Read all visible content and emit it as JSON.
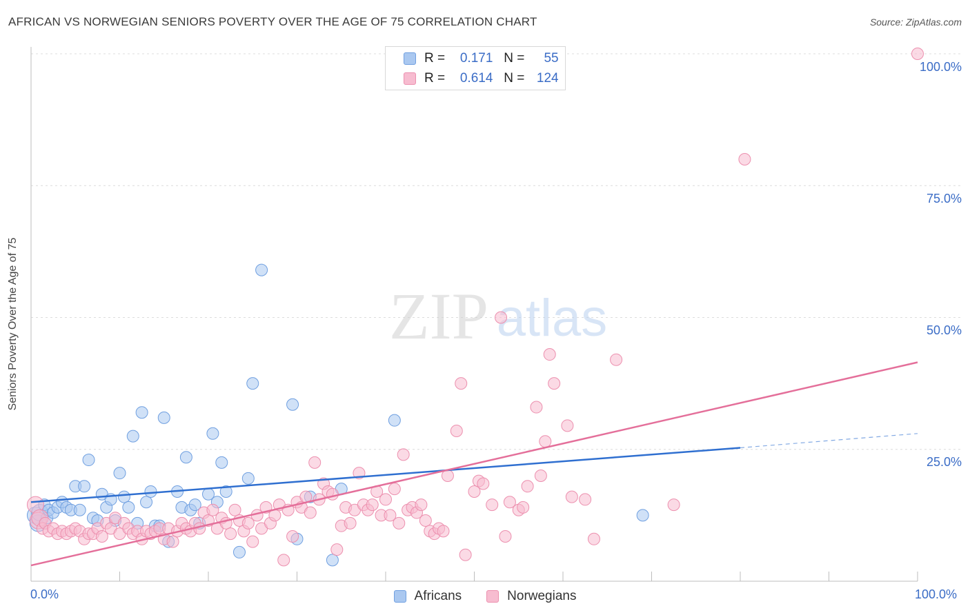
{
  "header": {
    "title": "AFRICAN VS NORWEGIAN SENIORS POVERTY OVER THE AGE OF 75 CORRELATION CHART",
    "source": "Source: ZipAtlas.com"
  },
  "legend": {
    "rows": [
      {
        "r_label": "R =",
        "r_value": "0.171",
        "n_label": "N =",
        "n_value": "55"
      },
      {
        "r_label": "R =",
        "r_value": "0.614",
        "n_label": "N =",
        "n_value": "124"
      }
    ]
  },
  "colors": {
    "africans_fill": "#aac8f0",
    "africans_stroke": "#6f9fe0",
    "africans_line": "#2f6fd0",
    "norwegians_fill": "#f7bcd0",
    "norwegians_stroke": "#ec8fae",
    "norwegians_line": "#e46f9a",
    "tick_text": "#3a6cc6",
    "grid": "#dcdcdc"
  },
  "watermark": {
    "zip": "ZIP",
    "atlas": "atlas"
  },
  "chart_data": {
    "type": "scatter",
    "title": "AFRICAN VS NORWEGIAN SENIORS POVERTY OVER THE AGE OF 75 CORRELATION CHART",
    "xlabel": "",
    "ylabel": "Seniors Poverty Over the Age of 75",
    "xlim": [
      0,
      100
    ],
    "ylim": [
      0,
      100
    ],
    "x_tick_labels": [
      "0.0%",
      "100.0%"
    ],
    "y_tick_labels": [
      {
        "value": 100,
        "label": "100.0%"
      },
      {
        "value": 75,
        "label": "75.0%"
      },
      {
        "value": 50,
        "label": "50.0%"
      },
      {
        "value": 25,
        "label": "25.0%"
      }
    ],
    "grid": true,
    "legend_position": "bottom-center",
    "series": [
      {
        "name": "Africans",
        "r": 0.171,
        "n": 55,
        "trend": {
          "x0": 0,
          "y0": 15.0,
          "x1": 80,
          "y1": 25.3,
          "dashed_to_x": 100,
          "dashed_to_y": 28.0
        },
        "points": [
          [
            0.5,
            12.5
          ],
          [
            0.8,
            11.0
          ],
          [
            1.0,
            13.0
          ],
          [
            1.5,
            14.5
          ],
          [
            1.8,
            12.0
          ],
          [
            2.0,
            13.5
          ],
          [
            2.5,
            13.0
          ],
          [
            3.0,
            14.0
          ],
          [
            3.5,
            15.0
          ],
          [
            4.0,
            14.0
          ],
          [
            4.5,
            13.5
          ],
          [
            5.0,
            18.0
          ],
          [
            5.5,
            13.5
          ],
          [
            6.0,
            18.0
          ],
          [
            6.5,
            23.0
          ],
          [
            7.0,
            12.0
          ],
          [
            7.5,
            11.5
          ],
          [
            8.0,
            16.5
          ],
          [
            8.5,
            14.0
          ],
          [
            9.0,
            15.5
          ],
          [
            9.5,
            11.5
          ],
          [
            10.0,
            20.5
          ],
          [
            10.5,
            16.0
          ],
          [
            11.0,
            14.0
          ],
          [
            11.5,
            27.5
          ],
          [
            12.0,
            11.0
          ],
          [
            12.5,
            32.0
          ],
          [
            13.0,
            15.0
          ],
          [
            13.5,
            17.0
          ],
          [
            14.0,
            10.5
          ],
          [
            14.5,
            10.5
          ],
          [
            15.0,
            31.0
          ],
          [
            15.5,
            7.5
          ],
          [
            16.5,
            17.0
          ],
          [
            17.0,
            14.0
          ],
          [
            17.5,
            23.5
          ],
          [
            18.0,
            13.5
          ],
          [
            18.5,
            14.5
          ],
          [
            19.0,
            11.0
          ],
          [
            20.0,
            16.5
          ],
          [
            20.5,
            28.0
          ],
          [
            21.0,
            15.0
          ],
          [
            21.5,
            22.5
          ],
          [
            22.0,
            17.0
          ],
          [
            23.5,
            5.5
          ],
          [
            24.5,
            19.5
          ],
          [
            25.0,
            37.5
          ],
          [
            26.0,
            59.0
          ],
          [
            29.5,
            33.5
          ],
          [
            30.0,
            8.0
          ],
          [
            31.5,
            16.0
          ],
          [
            34.0,
            4.0
          ],
          [
            35.0,
            17.5
          ],
          [
            41.0,
            30.5
          ],
          [
            69.0,
            12.5
          ]
        ]
      },
      {
        "name": "Norwegians",
        "r": 0.614,
        "n": 124,
        "trend": {
          "x0": 0,
          "y0": 3.0,
          "x1": 100,
          "y1": 41.5
        },
        "points": [
          [
            0.5,
            14.5
          ],
          [
            0.8,
            11.5
          ],
          [
            1.0,
            12.0
          ],
          [
            1.3,
            10.0
          ],
          [
            1.6,
            11.0
          ],
          [
            2.0,
            9.5
          ],
          [
            2.5,
            10.0
          ],
          [
            3.0,
            9.0
          ],
          [
            3.5,
            9.5
          ],
          [
            4.0,
            9.0
          ],
          [
            4.5,
            9.5
          ],
          [
            5.0,
            10.0
          ],
          [
            5.5,
            9.5
          ],
          [
            6.0,
            8.0
          ],
          [
            6.5,
            9.0
          ],
          [
            7.0,
            9.0
          ],
          [
            7.5,
            10.0
          ],
          [
            8.0,
            8.5
          ],
          [
            8.5,
            11.0
          ],
          [
            9.0,
            10.0
          ],
          [
            9.5,
            12.0
          ],
          [
            10.0,
            9.0
          ],
          [
            10.5,
            11.0
          ],
          [
            11.0,
            10.0
          ],
          [
            11.5,
            9.0
          ],
          [
            12.0,
            9.5
          ],
          [
            12.5,
            8.0
          ],
          [
            13.0,
            9.5
          ],
          [
            13.5,
            9.0
          ],
          [
            14.0,
            9.5
          ],
          [
            14.5,
            10.0
          ],
          [
            15.0,
            8.0
          ],
          [
            15.5,
            10.0
          ],
          [
            16.0,
            7.5
          ],
          [
            16.5,
            9.5
          ],
          [
            17.0,
            11.0
          ],
          [
            17.5,
            10.0
          ],
          [
            18.0,
            9.5
          ],
          [
            18.5,
            11.0
          ],
          [
            19.0,
            10.0
          ],
          [
            19.5,
            13.0
          ],
          [
            20.0,
            11.5
          ],
          [
            20.5,
            13.5
          ],
          [
            21.0,
            10.0
          ],
          [
            21.5,
            12.0
          ],
          [
            22.0,
            11.0
          ],
          [
            22.5,
            9.0
          ],
          [
            23.0,
            13.5
          ],
          [
            23.5,
            11.5
          ],
          [
            24.0,
            9.5
          ],
          [
            24.5,
            11.0
          ],
          [
            25.0,
            7.5
          ],
          [
            25.5,
            12.5
          ],
          [
            26.0,
            10.0
          ],
          [
            26.5,
            14.0
          ],
          [
            27.0,
            11.0
          ],
          [
            27.5,
            12.5
          ],
          [
            28.0,
            14.5
          ],
          [
            28.5,
            4.0
          ],
          [
            29.0,
            13.5
          ],
          [
            29.5,
            8.5
          ],
          [
            30.0,
            15.0
          ],
          [
            30.5,
            14.0
          ],
          [
            31.0,
            16.0
          ],
          [
            31.5,
            13.0
          ],
          [
            32.0,
            22.5
          ],
          [
            32.5,
            15.5
          ],
          [
            33.0,
            18.5
          ],
          [
            33.5,
            17.0
          ],
          [
            34.0,
            16.5
          ],
          [
            34.5,
            6.0
          ],
          [
            35.0,
            10.5
          ],
          [
            35.5,
            14.0
          ],
          [
            36.0,
            11.0
          ],
          [
            36.5,
            13.5
          ],
          [
            37.0,
            20.5
          ],
          [
            37.5,
            14.5
          ],
          [
            38.0,
            13.5
          ],
          [
            38.5,
            14.5
          ],
          [
            39.0,
            17.0
          ],
          [
            39.5,
            12.5
          ],
          [
            40.0,
            15.5
          ],
          [
            40.5,
            12.5
          ],
          [
            41.0,
            17.5
          ],
          [
            41.5,
            11.0
          ],
          [
            42.0,
            24.0
          ],
          [
            42.5,
            13.5
          ],
          [
            43.0,
            14.0
          ],
          [
            43.5,
            13.0
          ],
          [
            44.0,
            14.5
          ],
          [
            44.5,
            11.5
          ],
          [
            45.0,
            9.5
          ],
          [
            45.5,
            9.0
          ],
          [
            46.0,
            10.0
          ],
          [
            46.5,
            9.5
          ],
          [
            47.0,
            20.0
          ],
          [
            48.0,
            28.5
          ],
          [
            48.5,
            37.5
          ],
          [
            49.0,
            5.0
          ],
          [
            50.0,
            17.0
          ],
          [
            50.5,
            19.0
          ],
          [
            51.0,
            18.5
          ],
          [
            52.0,
            14.5
          ],
          [
            53.0,
            50.0
          ],
          [
            53.5,
            8.5
          ],
          [
            54.0,
            15.0
          ],
          [
            55.0,
            13.5
          ],
          [
            55.5,
            14.0
          ],
          [
            56.0,
            18.0
          ],
          [
            57.0,
            33.0
          ],
          [
            57.5,
            20.0
          ],
          [
            58.0,
            26.5
          ],
          [
            58.5,
            43.0
          ],
          [
            59.0,
            37.5
          ],
          [
            60.5,
            29.5
          ],
          [
            61.0,
            16.0
          ],
          [
            62.5,
            15.5
          ],
          [
            63.5,
            8.0
          ],
          [
            66.0,
            42.0
          ],
          [
            72.5,
            14.5
          ],
          [
            80.5,
            80.0
          ],
          [
            100.0,
            100.0
          ]
        ]
      }
    ]
  },
  "bottom_legend": [
    {
      "label": "Africans"
    },
    {
      "label": "Norwegians"
    }
  ]
}
